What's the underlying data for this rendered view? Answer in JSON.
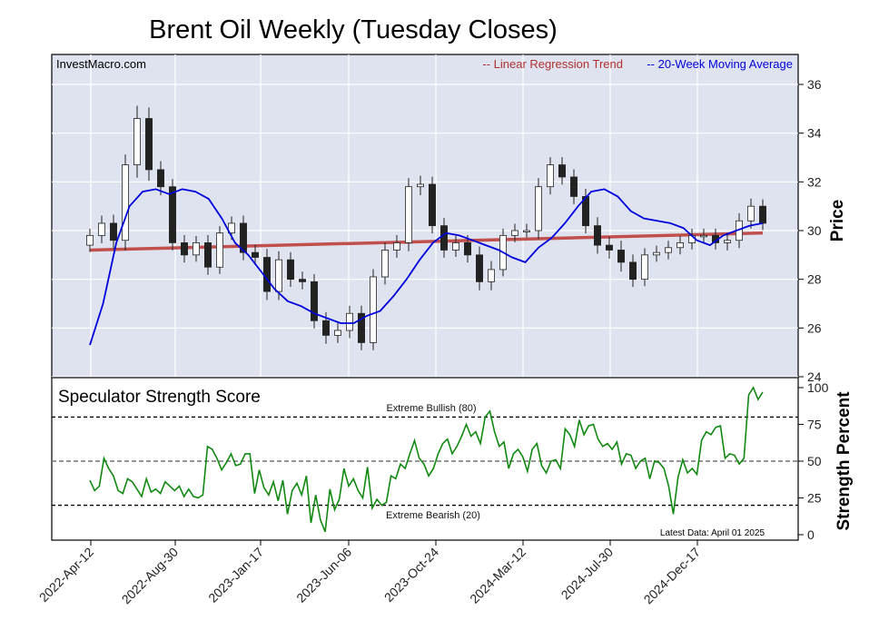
{
  "chart_data": [
    {
      "type": "candlestick",
      "title": "Brent Oil Weekly (Tuesday Closes)",
      "ylabel": "Price",
      "source_label": "InvestMacro.com",
      "legend": [
        {
          "name": "-- Linear Regression Trend",
          "color": "#b03030"
        },
        {
          "name": "-- 20-Week Moving Average",
          "color": "#0000dd"
        }
      ],
      "legend_position": "top-right",
      "grid": true,
      "ylim": [
        24,
        37.2
      ],
      "yticks": [
        "24",
        "26",
        "28",
        "30",
        "32",
        "34",
        "36"
      ],
      "xticks": [
        "2022-Apr-12",
        "2022-Aug-30",
        "2023-Jan-17",
        "2023-Jun-06",
        "2023-Oct-24",
        "2024-Mar-12",
        "2024-Jul-30",
        "2024-Dec-17"
      ],
      "trend_line": [
        29.2,
        29.9
      ],
      "moving_average": [
        25.3,
        27.0,
        29.5,
        31.0,
        31.6,
        31.7,
        31.5,
        31.7,
        31.6,
        31.3,
        30.5,
        29.5,
        29.0,
        28.3,
        27.6,
        27.1,
        26.9,
        26.6,
        26.4,
        26.2,
        26.2,
        26.5,
        26.7,
        27.3,
        28.0,
        28.8,
        29.5,
        29.9,
        29.8,
        29.6,
        29.4,
        29.2,
        28.9,
        28.7,
        29.3,
        29.7,
        30.3,
        31.0,
        31.6,
        31.7,
        31.4,
        30.8,
        30.5,
        30.4,
        30.3,
        30.1,
        29.6,
        29.4,
        29.8,
        30.0,
        30.2,
        30.3
      ],
      "closes": [
        29.8,
        30.3,
        29.6,
        32.7,
        34.6,
        32.5,
        31.8,
        29.5,
        29.0,
        29.5,
        28.5,
        29.9,
        30.3,
        29.1,
        28.9,
        27.5,
        28.8,
        28.0,
        27.9,
        26.3,
        25.7,
        25.9,
        26.6,
        25.4,
        28.1,
        29.2,
        29.5,
        31.8,
        31.9,
        30.2,
        29.2,
        29.5,
        29.0,
        27.9,
        28.4,
        29.8,
        30.0,
        30.0,
        31.8,
        32.7,
        32.2,
        31.4,
        30.2,
        29.4,
        29.2,
        28.7,
        28.0,
        29.0,
        29.1,
        29.3,
        29.5,
        29.8,
        29.8,
        29.5,
        29.6,
        30.4,
        31.0,
        30.3
      ],
      "volatility": [
        0.8,
        0.9,
        1.0,
        1.2,
        1.5,
        1.3,
        1.0,
        0.9,
        0.9,
        0.8,
        0.9,
        0.8,
        0.8,
        0.9,
        0.9,
        1.0,
        1.0,
        0.9,
        0.9,
        0.9,
        1.0,
        0.9,
        0.9,
        0.9,
        0.9,
        0.9,
        0.9,
        1.0,
        1.0,
        0.9,
        0.9,
        0.8,
        0.9,
        1.0,
        1.0,
        0.8,
        0.8,
        0.8,
        1.0,
        0.9,
        0.9,
        0.9,
        0.9,
        1.0,
        1.0,
        1.1,
        0.9,
        0.8,
        0.8,
        0.8,
        0.8,
        0.8,
        0.8,
        0.8,
        0.9,
        0.9,
        0.9,
        0.8
      ]
    },
    {
      "type": "line",
      "title": "Speculator Strength Score",
      "ylabel": "Strength Percent",
      "ylim": [
        0,
        100
      ],
      "yticks": [
        "0",
        "25",
        "50",
        "75",
        "100"
      ],
      "thresholds": [
        {
          "value": 80,
          "label": "Extreme Bullish (80)"
        },
        {
          "value": 50,
          "label": ""
        },
        {
          "value": 20,
          "label": "Extreme Bearish (20)"
        }
      ],
      "annotation": "Latest Data: April 01 2025",
      "series": [
        {
          "color": "#118811",
          "values": [
            37,
            30,
            33,
            52,
            45,
            40,
            30,
            28,
            38,
            36,
            31,
            26,
            38,
            29,
            31,
            28,
            36,
            33,
            30,
            33,
            26,
            31,
            26,
            25,
            27,
            60,
            58,
            52,
            44,
            49,
            55,
            47,
            48,
            55,
            55,
            28,
            44,
            32,
            27,
            36,
            23,
            37,
            14,
            30,
            35,
            27,
            40,
            8,
            27,
            10,
            2,
            31,
            17,
            24,
            45,
            33,
            38,
            30,
            25,
            46,
            18,
            24,
            20,
            22,
            40,
            38,
            48,
            45,
            55,
            64,
            52,
            48,
            40,
            45,
            55,
            62,
            65,
            55,
            60,
            67,
            75,
            67,
            70,
            62,
            80,
            84,
            70,
            60,
            63,
            45,
            55,
            58,
            53,
            43,
            58,
            62,
            47,
            42,
            50,
            51,
            45,
            72,
            68,
            60,
            78,
            68,
            74,
            75,
            65,
            60,
            62,
            58,
            63,
            48,
            55,
            54,
            45,
            50,
            52,
            38,
            50,
            49,
            45,
            33,
            14,
            39,
            51,
            42,
            45,
            41,
            64,
            70,
            68,
            73,
            74,
            52,
            55,
            54,
            48,
            52,
            95,
            100,
            92,
            97
          ]
        }
      ]
    }
  ]
}
